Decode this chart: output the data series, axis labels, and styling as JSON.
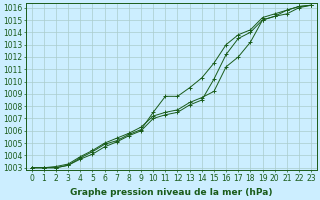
{
  "title": "Graphe pression niveau de la mer (hPa)",
  "x": [
    0,
    1,
    2,
    3,
    4,
    5,
    6,
    7,
    8,
    9,
    10,
    11,
    12,
    13,
    14,
    15,
    16,
    17,
    18,
    19,
    20,
    21,
    22,
    23
  ],
  "series1": [
    1003.0,
    1003.0,
    1003.1,
    1003.3,
    1003.9,
    1004.4,
    1005.0,
    1005.4,
    1005.8,
    1006.3,
    1007.2,
    1007.5,
    1007.7,
    1008.3,
    1008.7,
    1009.2,
    1011.2,
    1012.0,
    1013.2,
    1015.0,
    1015.3,
    1015.5,
    1016.0,
    1016.2
  ],
  "series2": [
    1003.0,
    1003.0,
    1003.0,
    1003.2,
    1003.7,
    1004.1,
    1004.7,
    1005.1,
    1005.6,
    1006.0,
    1007.0,
    1007.3,
    1007.5,
    1008.1,
    1008.5,
    1010.2,
    1012.2,
    1013.5,
    1014.0,
    1015.0,
    1015.3,
    1015.8,
    1016.1,
    1016.2
  ],
  "series3": [
    1003.0,
    1003.0,
    1003.0,
    1003.2,
    1003.8,
    1004.3,
    1004.9,
    1005.2,
    1005.7,
    1006.1,
    1007.5,
    1008.8,
    1008.8,
    1009.5,
    1010.3,
    1011.5,
    1013.0,
    1013.8,
    1014.2,
    1015.2,
    1015.5,
    1015.8,
    1016.1,
    1016.2
  ],
  "ylim_min": 1002.8,
  "ylim_max": 1016.4,
  "yticks": [
    1003,
    1004,
    1005,
    1006,
    1007,
    1008,
    1009,
    1010,
    1011,
    1012,
    1013,
    1014,
    1015,
    1016
  ],
  "line_color": "#1a5c1a",
  "bg_color": "#cceeff",
  "grid_color": "#aacccc",
  "marker": "+",
  "marker_size": 3,
  "lw": 0.7,
  "fontsize_ticks": 5.5,
  "fontsize_label": 6.5
}
